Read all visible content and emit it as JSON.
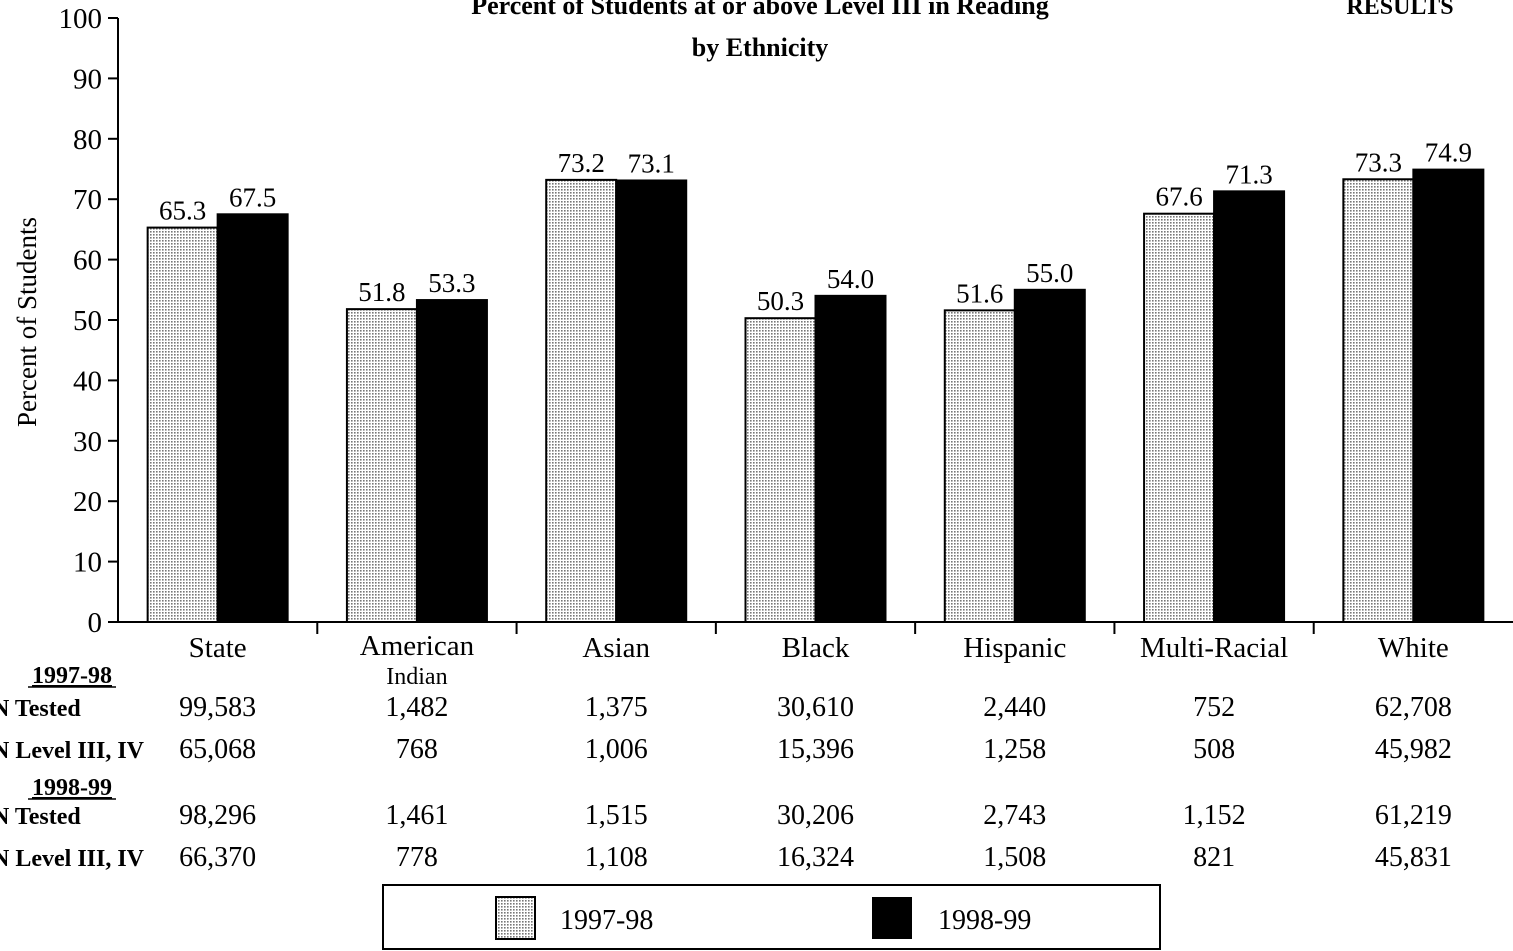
{
  "chart_data": {
    "type": "bar",
    "title_line1": "Percent of Students at or above Level III in Reading",
    "title_line2": "by Ethnicity",
    "corner_label": "RESULTS",
    "ylabel": "Percent of Students",
    "ylim": [
      0,
      100
    ],
    "yticks": [
      0,
      10,
      20,
      30,
      40,
      50,
      60,
      70,
      80,
      90,
      100
    ],
    "categories": [
      "State",
      "American Indian",
      "Asian",
      "Black",
      "Hispanic",
      "Multi-Racial",
      "White"
    ],
    "series": [
      {
        "name": "1997-98",
        "values": [
          65.3,
          51.8,
          73.2,
          50.3,
          51.6,
          67.6,
          73.3
        ],
        "labels": [
          "65.3",
          "51.8",
          "73.2",
          "50.3",
          "51.6",
          "67.6",
          "73.3"
        ]
      },
      {
        "name": "1998-99",
        "values": [
          67.5,
          53.3,
          73.1,
          54.0,
          55.0,
          71.3,
          74.9
        ],
        "labels": [
          "67.5",
          "53.3",
          "73.1",
          "54.0",
          "55.0",
          "71.3",
          "74.9"
        ]
      }
    ],
    "table": {
      "groups": [
        {
          "header": "1997-98",
          "rows": [
            {
              "label": "N Tested",
              "values": [
                "99,583",
                "1,482",
                "1,375",
                "30,610",
                "2,440",
                "752",
                "62,708"
              ]
            },
            {
              "label": "N Level III, IV",
              "values": [
                "65,068",
                "768",
                "1,006",
                "15,396",
                "1,258",
                "508",
                "45,982"
              ]
            }
          ]
        },
        {
          "header": "1998-99",
          "rows": [
            {
              "label": "N Tested",
              "values": [
                "98,296",
                "1,461",
                "1,515",
                "30,206",
                "2,743",
                "1,152",
                "61,219"
              ]
            },
            {
              "label": "N Level III, IV",
              "values": [
                "66,370",
                "778",
                "1,108",
                "16,324",
                "1,508",
                "821",
                "45,831"
              ]
            }
          ]
        }
      ]
    },
    "legend": {
      "position": "bottom",
      "items": [
        "1997-98",
        "1998-99"
      ]
    },
    "colors": {
      "series1": "#f0f0f0",
      "series2": "#000000"
    }
  }
}
